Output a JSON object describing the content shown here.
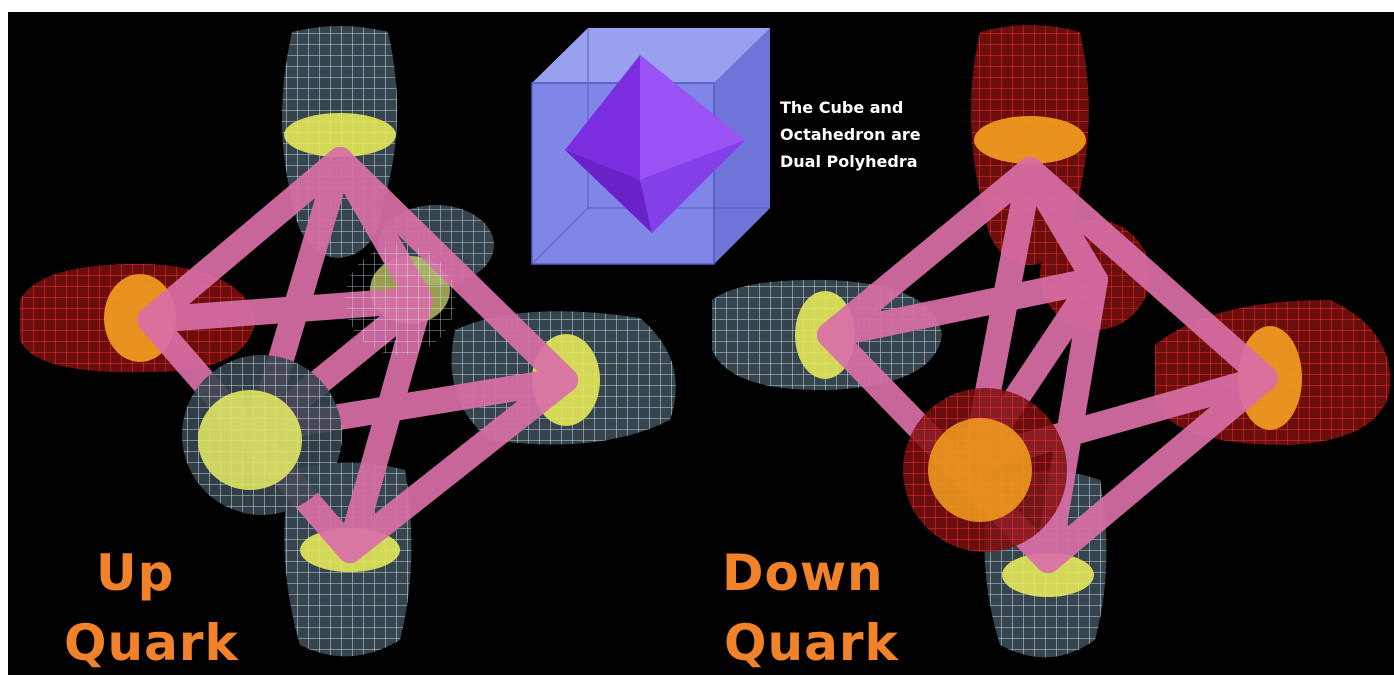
{
  "up_quark": {
    "line1": "Up",
    "line2": "Quark"
  },
  "down_quark": {
    "line1": "Down",
    "line2": "Quark"
  },
  "dual_caption": {
    "line1": "The Cube and",
    "line2": "Octahedron are",
    "line3": "Dual Polyhedra"
  },
  "colors": {
    "background": "#000000",
    "label_orange": "#f2822a",
    "rod_pink": "#d96fa8",
    "wireframe_white": "#d8ecff",
    "wireframe_red": "#ff2020",
    "core_yellow": "#e6e85a",
    "core_orange": "#f5a020",
    "cube_blue": "#7f86e8",
    "octahedron_purple": "#8a3cf0"
  }
}
